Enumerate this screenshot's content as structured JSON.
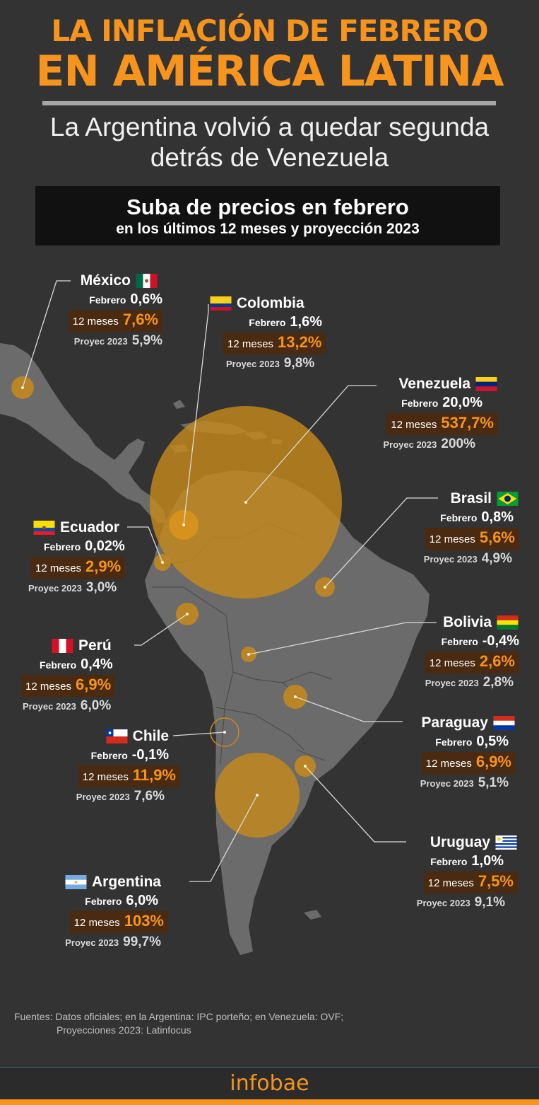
{
  "header": {
    "title_line1": "LA INFLACIÓN DE FEBRERO",
    "title_line2": "EN AMÉRICA LATINA",
    "subtitle_line1": "La Argentina volvió a quedar segunda",
    "subtitle_line2": "detrás de Venezuela"
  },
  "box": {
    "line1": "Suba de precios en febrero",
    "line2": "en los últimos 12 meses y proyección 2023"
  },
  "labels": {
    "feb": "Febrero",
    "m12": "12 meses",
    "proj": "Proyec 2023"
  },
  "countries": [
    {
      "name": "México",
      "feb": "0,6%",
      "m12": "7,6%",
      "proj": "5,9%",
      "flag": "mexico-flag-icon"
    },
    {
      "name": "Colombia",
      "feb": "1,6%",
      "m12": "13,2%",
      "proj": "9,8%",
      "flag": "colombia-flag-icon"
    },
    {
      "name": "Venezuela",
      "feb": "20,0%",
      "m12": "537,7%",
      "proj": "200%",
      "flag": "venezuela-flag-icon"
    },
    {
      "name": "Brasil",
      "feb": "0,8%",
      "m12": "5,6%",
      "proj": "4,9%",
      "flag": "brazil-flag-icon"
    },
    {
      "name": "Ecuador",
      "feb": "0,02%",
      "m12": "2,9%",
      "proj": "3,0%",
      "flag": "ecuador-flag-icon"
    },
    {
      "name": "Perú",
      "feb": "0,4%",
      "m12": "6,9%",
      "proj": "6,0%",
      "flag": "peru-flag-icon"
    },
    {
      "name": "Bolivia",
      "feb": "-0,4%",
      "m12": "2,6%",
      "proj": "2,8%",
      "flag": "bolivia-flag-icon"
    },
    {
      "name": "Paraguay",
      "feb": "0,5%",
      "m12": "6,9%",
      "proj": "5,1%",
      "flag": "paraguay-flag-icon"
    },
    {
      "name": "Chile",
      "feb": "-0,1%",
      "m12": "11,9%",
      "proj": "7,6%",
      "flag": "chile-flag-icon"
    },
    {
      "name": "Uruguay",
      "feb": "1,0%",
      "m12": "7,5%",
      "proj": "9,1%",
      "flag": "uruguay-flag-icon"
    },
    {
      "name": "Argentina",
      "feb": "6,0%",
      "m12": "103%",
      "proj": "99,7%",
      "flag": "argentina-flag-icon"
    }
  ],
  "source": {
    "line1": "Fuentes: Datos oficiales; en la Argentina: IPC porteño; en Venezuela: OVF;",
    "line2": "Proyecciones 2023: Latinfocus"
  },
  "footer": {
    "brand": "infobae"
  },
  "colors": {
    "accent": "#f7941d",
    "background": "#333333",
    "land": "#6b6b6b",
    "bubble": "#c78a1a"
  }
}
